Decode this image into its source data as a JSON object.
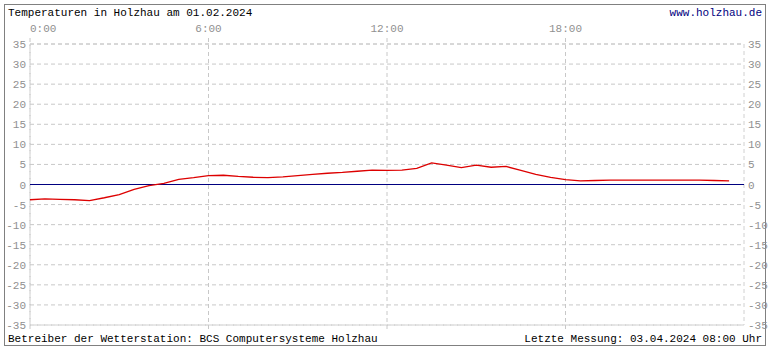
{
  "chart_data": {
    "type": "line",
    "title": "Temperaturen in Holzhau am 01.02.2024",
    "source_url": "www.holzhau.de",
    "footer_left": "Betreiber der Wetterstation: BCS Computersysteme Holzhau",
    "footer_right": "Letzte Messung: 03.04.2024 08:00 Uhr",
    "x": [
      0,
      0.5,
      1,
      1.5,
      2,
      2.5,
      3,
      3.5,
      4,
      4.5,
      5,
      5.5,
      6,
      6.5,
      7,
      7.5,
      8,
      8.5,
      9,
      9.5,
      10,
      10.5,
      11,
      11.5,
      12,
      12.5,
      13,
      13.5,
      14,
      14.5,
      15,
      15.5,
      16,
      16.5,
      17,
      17.5,
      18,
      18.5,
      19,
      19.5,
      20,
      20.5,
      21,
      21.5,
      22,
      22.5,
      23,
      23.5
    ],
    "values": [
      -3.8,
      -3.6,
      -3.7,
      -3.8,
      -4.0,
      -3.3,
      -2.5,
      -1.2,
      -0.3,
      0.3,
      1.3,
      1.7,
      2.2,
      2.3,
      2.0,
      1.8,
      1.7,
      1.9,
      2.2,
      2.5,
      2.8,
      3.0,
      3.3,
      3.6,
      3.5,
      3.6,
      4.0,
      5.4,
      4.8,
      4.2,
      4.8,
      4.3,
      4.5,
      3.5,
      2.5,
      1.8,
      1.2,
      0.9,
      1.0,
      1.1,
      1.1,
      1.1,
      1.1,
      1.1,
      1.1,
      1.1,
      1.0,
      0.9
    ],
    "color": "#dd0000",
    "xlim": [
      0,
      24
    ],
    "xticks": [
      {
        "value": 0,
        "label": "0:00"
      },
      {
        "value": 6,
        "label": "6:00"
      },
      {
        "value": 12,
        "label": "12:00"
      },
      {
        "value": 18,
        "label": "18:00"
      }
    ],
    "ylim": [
      -35,
      35
    ],
    "yticks": [
      -35,
      -30,
      -25,
      -20,
      -15,
      -10,
      -5,
      0,
      5,
      10,
      15,
      20,
      25,
      30,
      35
    ],
    "grid": true
  }
}
